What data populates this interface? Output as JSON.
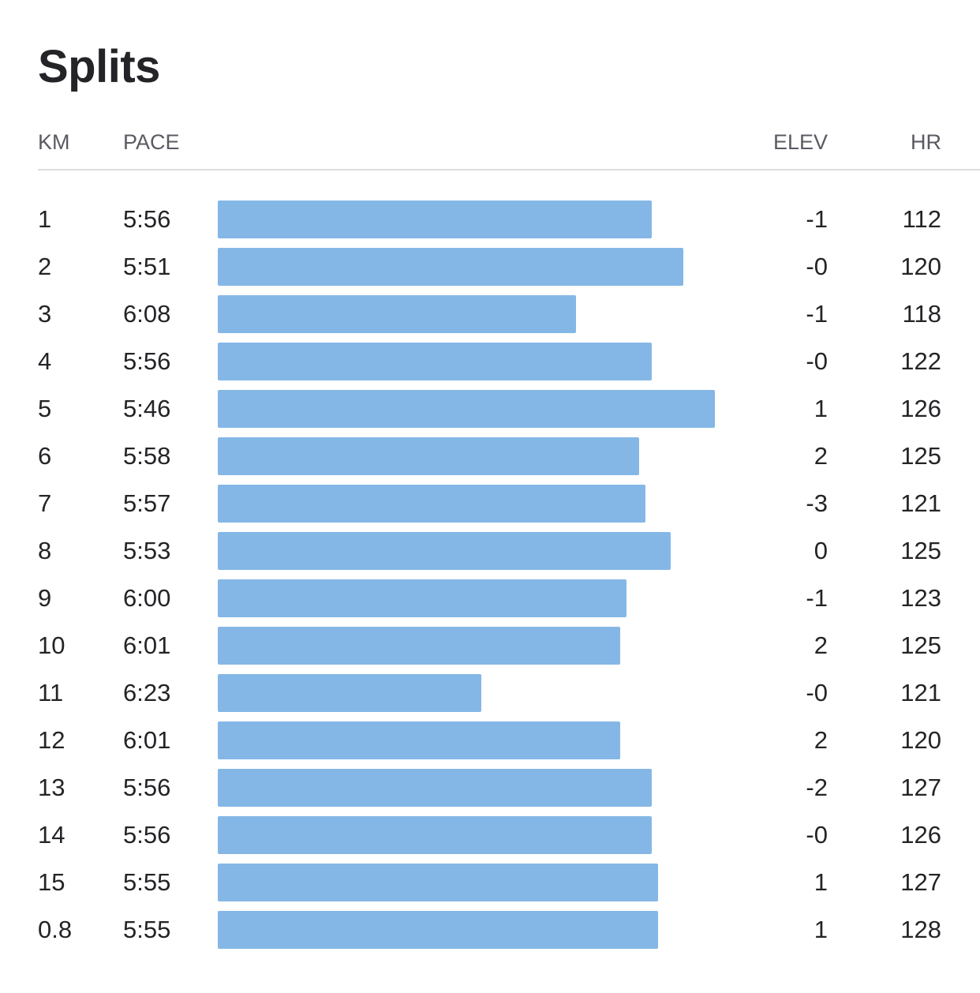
{
  "title": "Splits",
  "columns": {
    "km": "KM",
    "pace": "PACE",
    "elev": "ELEV",
    "hr": "HR"
  },
  "colors": {
    "bar": "#84b7e6",
    "text": "#242428",
    "header_text": "#5a5a63",
    "divider": "#dcdcde"
  },
  "chart_data": {
    "type": "bar",
    "categories": [
      "1",
      "2",
      "3",
      "4",
      "5",
      "6",
      "7",
      "8",
      "9",
      "10",
      "11",
      "12",
      "13",
      "14",
      "15",
      "0.8"
    ],
    "values_seconds_per_km": [
      356,
      351,
      368,
      356,
      346,
      358,
      357,
      353,
      360,
      361,
      383,
      361,
      356,
      356,
      355,
      355
    ]
  },
  "splits": [
    {
      "km": "1",
      "pace": "5:56",
      "elev": "-1",
      "hr": "112"
    },
    {
      "km": "2",
      "pace": "5:51",
      "elev": "-0",
      "hr": "120"
    },
    {
      "km": "3",
      "pace": "6:08",
      "elev": "-1",
      "hr": "118"
    },
    {
      "km": "4",
      "pace": "5:56",
      "elev": "-0",
      "hr": "122"
    },
    {
      "km": "5",
      "pace": "5:46",
      "elev": "1",
      "hr": "126"
    },
    {
      "km": "6",
      "pace": "5:58",
      "elev": "2",
      "hr": "125"
    },
    {
      "km": "7",
      "pace": "5:57",
      "elev": "-3",
      "hr": "121"
    },
    {
      "km": "8",
      "pace": "5:53",
      "elev": "0",
      "hr": "125"
    },
    {
      "km": "9",
      "pace": "6:00",
      "elev": "-1",
      "hr": "123"
    },
    {
      "km": "10",
      "pace": "6:01",
      "elev": "2",
      "hr": "125"
    },
    {
      "km": "11",
      "pace": "6:23",
      "elev": "-0",
      "hr": "121"
    },
    {
      "km": "12",
      "pace": "6:01",
      "elev": "2",
      "hr": "120"
    },
    {
      "km": "13",
      "pace": "5:56",
      "elev": "-2",
      "hr": "127"
    },
    {
      "km": "14",
      "pace": "5:56",
      "elev": "-0",
      "hr": "126"
    },
    {
      "km": "15",
      "pace": "5:55",
      "elev": "1",
      "hr": "127"
    },
    {
      "km": "0.8",
      "pace": "5:55",
      "elev": "1",
      "hr": "128"
    }
  ]
}
